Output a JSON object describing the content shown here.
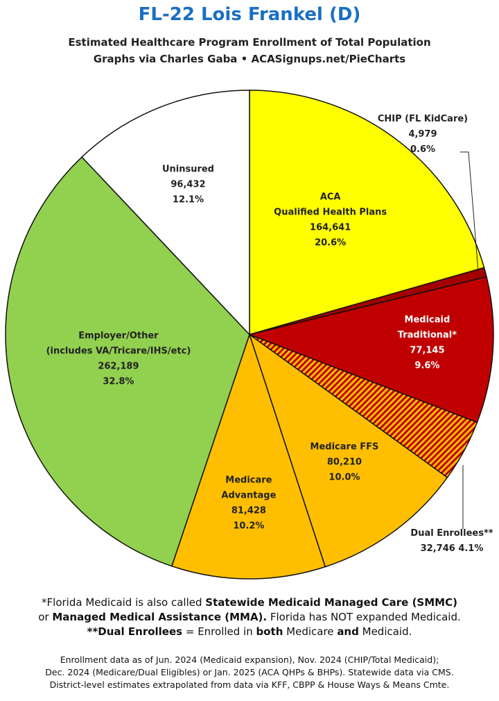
{
  "title": "FL-22 Lois Frankel (D)",
  "subtitle_line1": "Estimated Healthcare Program Enrollment of Total Population",
  "subtitle_line2": "Graphs via Charles Gaba  •  ACASignups.net/PieCharts",
  "colors": {
    "title": "#1a6fc4",
    "aca": "#ffff00",
    "chip": "#a30000",
    "medicaid": "#c00000",
    "dual_base": "#ffbf00",
    "dual_stripe": "#c00000",
    "medicare": "#ffbf00",
    "employer": "#92d050",
    "uninsured": "#ffffff"
  },
  "chart_data": {
    "type": "pie",
    "start_angle_deg": 0,
    "direction": "clockwise",
    "slices": [
      {
        "label_lines": [
          "ACA",
          "Qualified Health Plans"
        ],
        "value": 164641,
        "percent": "20.6%",
        "value_text": "164,641",
        "color": "#ffff00",
        "label_color": "#222222"
      },
      {
        "label_lines": [
          "CHIP (FL KidCare)"
        ],
        "value": 4979,
        "percent": "0.6%",
        "value_text": "4,979",
        "color": "#a30000",
        "label_color": "#222222",
        "callout": true
      },
      {
        "label_lines": [
          "Medicaid",
          "Traditional*"
        ],
        "value": 77145,
        "percent": "9.6%",
        "value_text": "77,145",
        "color": "#c00000",
        "label_color": "#ffffff"
      },
      {
        "label_lines": [
          "Dual Enrollees**"
        ],
        "value": 32746,
        "percent": "4.1%",
        "value_text": "32,746",
        "color": "#ffbf00",
        "pattern": "stripes",
        "label_color": "#222222",
        "callout": true
      },
      {
        "label_lines": [
          "Medicare FFS"
        ],
        "value": 80210,
        "percent": "10.0%",
        "value_text": "80,210",
        "color": "#ffbf00",
        "label_color": "#222222"
      },
      {
        "label_lines": [
          "Medicare",
          "Advantage"
        ],
        "value": 81428,
        "percent": "10.2%",
        "value_text": "81,428",
        "color": "#ffbf00",
        "label_color": "#222222"
      },
      {
        "label_lines": [
          "Employer/Other",
          "(includes VA/Tricare/IHS/etc)"
        ],
        "value": 262189,
        "percent": "32.8%",
        "value_text": "262,189",
        "color": "#92d050",
        "label_color": "#222222"
      },
      {
        "label_lines": [
          "Uninsured"
        ],
        "value": 96432,
        "percent": "12.1%",
        "value_text": "96,432",
        "color": "#ffffff",
        "label_color": "#222222"
      }
    ]
  },
  "notes": {
    "line1_pre": "*Florida Medicaid is also called ",
    "line1_bold": "Statewide Medicaid Managed Care (SMMC)",
    "line2_pre": "or ",
    "line2_bold": "Managed Medical Assistance (MMA).",
    "line2_post": " Florida has NOT expanded Medicaid.",
    "line3_bold1": "**Dual Enrollees",
    "line3_mid": " = Enrolled in ",
    "line3_bold2": "both",
    "line3_mid2": " Medicare ",
    "line3_bold3": "and",
    "line3_post": " Medicaid."
  },
  "footer": {
    "line1": "Enrollment data as of Jun. 2024 (Medicaid expansion), Nov. 2024 (CHIP/Total Medicaid);",
    "line2": "Dec. 2024 (Medicare/Dual Eligibles) or Jan. 2025 (ACA QHPs & BHPs). Statewide data via CMS.",
    "line3": "District-level estimates extrapolated from data via KFF, CBPP & House Ways & Means Cmte."
  }
}
